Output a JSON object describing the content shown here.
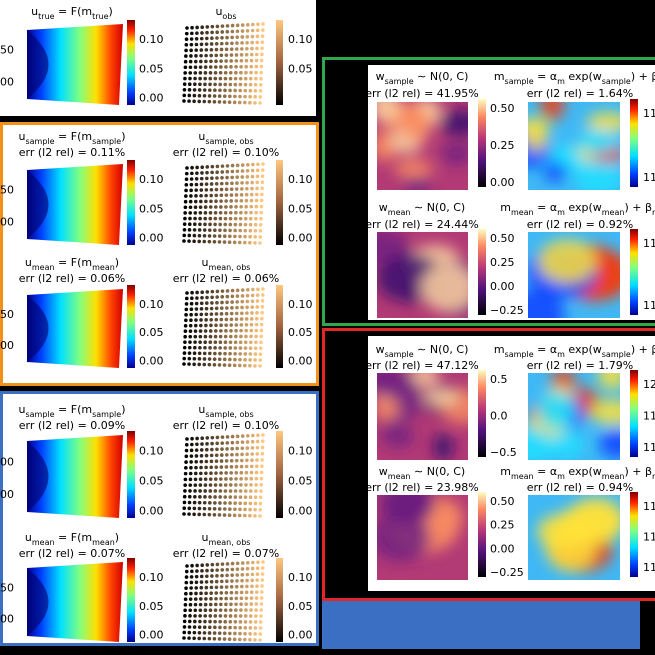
{
  "top_panel": {
    "left": {
      "title": [
        "u",
        "true",
        " = F(m",
        "true",
        ")"
      ],
      "y_labels": [
        "50",
        "00"
      ],
      "colorbar_labels": [
        "0.10",
        "0.05",
        "0.00"
      ]
    },
    "right": {
      "title": [
        "u",
        "obs"
      ],
      "colorbar_labels": [
        "0.10",
        "0.05"
      ]
    }
  },
  "orange_panel": {
    "rows": [
      {
        "left": {
          "title": [
            "u",
            "sample",
            " = F(m",
            "sample",
            ")"
          ],
          "err": "err (l2 rel) = 0.11%",
          "y_labels": [
            "50",
            "00"
          ],
          "colorbar_labels": [
            "0.10",
            "0.05",
            "0.00"
          ]
        },
        "right": {
          "title": [
            "u",
            "sample, obs"
          ],
          "err": "err (l2 rel) = 0.10%",
          "colorbar_labels": [
            "0.10",
            "0.05",
            "0.00"
          ]
        }
      },
      {
        "left": {
          "title": [
            "u",
            "mean",
            " = F(m",
            "mean",
            ")"
          ],
          "err": "err (l2 rel) = 0.06%",
          "y_labels": [
            "50",
            "00"
          ],
          "colorbar_labels": [
            "0.10",
            "0.05",
            "0.00"
          ]
        },
        "right": {
          "title": [
            "u",
            "mean, obs"
          ],
          "err": "err (l2 rel) = 0.06%",
          "colorbar_labels": [
            "0.10",
            "0.05",
            "0.00"
          ]
        }
      }
    ]
  },
  "blue_panel": {
    "rows": [
      {
        "left": {
          "title": [
            "u",
            "sample",
            " = F(m",
            "sample",
            ")"
          ],
          "err": "err (l2 rel) = 0.09%",
          "y_labels": [
            "200",
            "00"
          ],
          "colorbar_labels": [
            "0.10",
            "0.05",
            "0.00"
          ]
        },
        "right": {
          "title": [
            "u",
            "sample, obs"
          ],
          "err": "err (l2 rel) = 0.10%",
          "colorbar_labels": [
            "0.10",
            "0.05",
            "0.00"
          ]
        }
      },
      {
        "left": {
          "title": [
            "u",
            "mean",
            " = F(m",
            "mean",
            ")"
          ],
          "err": "err (l2 rel) = 0.07%",
          "y_labels": [
            "50",
            "00"
          ],
          "colorbar_labels": [
            "0.10",
            "0.05",
            "0.00"
          ]
        },
        "right": {
          "title": [
            "u",
            "mean, obs"
          ],
          "err": "err (l2 rel) = 0.07%",
          "colorbar_labels": [
            "0.10",
            "0.05",
            "0.00"
          ]
        }
      }
    ]
  },
  "green_panel": {
    "rows": [
      {
        "left": {
          "title": [
            "w",
            "sample",
            " ∼ N(0, C)"
          ],
          "err": "err (l2 rel) = 41.95%",
          "colorbar_labels": [
            "0.50",
            "0.25",
            "0.00"
          ]
        },
        "right": {
          "title": [
            "m",
            "sample",
            " = α",
            "m",
            " exp(w",
            "sample",
            ") + β",
            "m"
          ],
          "err": "err (l2 rel) = 1.64%",
          "colorbar_labels": [
            "11",
            "11"
          ]
        }
      },
      {
        "left": {
          "title": [
            "w",
            "mean",
            " ∼ N(0, C)"
          ],
          "err": "err (l2 rel) = 24.44%",
          "colorbar_labels": [
            "0.50",
            "0.25",
            "0.00",
            "−0.25"
          ]
        },
        "right": {
          "title": [
            "m",
            "mean",
            " = α",
            "m",
            " exp(w",
            "mean",
            ") + β",
            "m"
          ],
          "err": "err (l2 rel) = 0.92%",
          "colorbar_labels": [
            "11",
            "11"
          ]
        }
      }
    ]
  },
  "red_panel": {
    "rows": [
      {
        "left": {
          "title": [
            "w",
            "sample",
            " ∼ N(0, C)"
          ],
          "err": "err (l2 rel) = 47.12%",
          "colorbar_labels": [
            "0.5",
            "0.0",
            "−0.5"
          ]
        },
        "right": {
          "title": [
            "m",
            "sample",
            " = α",
            "m",
            " exp(w",
            "sample",
            ") + β",
            "m"
          ],
          "err": "err (l2 rel) = 1.79%",
          "colorbar_labels": [
            "12",
            "11",
            "11"
          ]
        }
      },
      {
        "left": {
          "title": [
            "w",
            "mean",
            " ∼ N(0, C)"
          ],
          "err": "err (l2 rel) = 23.98%",
          "colorbar_labels": [
            "0.50",
            "0.25",
            "0.00",
            "−0.25"
          ]
        },
        "right": {
          "title": [
            "m",
            "mean",
            " = α",
            "m",
            " exp(w",
            "mean",
            ") + β",
            "m"
          ],
          "err": "err (l2 rel) = 0.94%",
          "colorbar_labels": [
            "11",
            "11",
            "11"
          ]
        }
      }
    ]
  }
}
